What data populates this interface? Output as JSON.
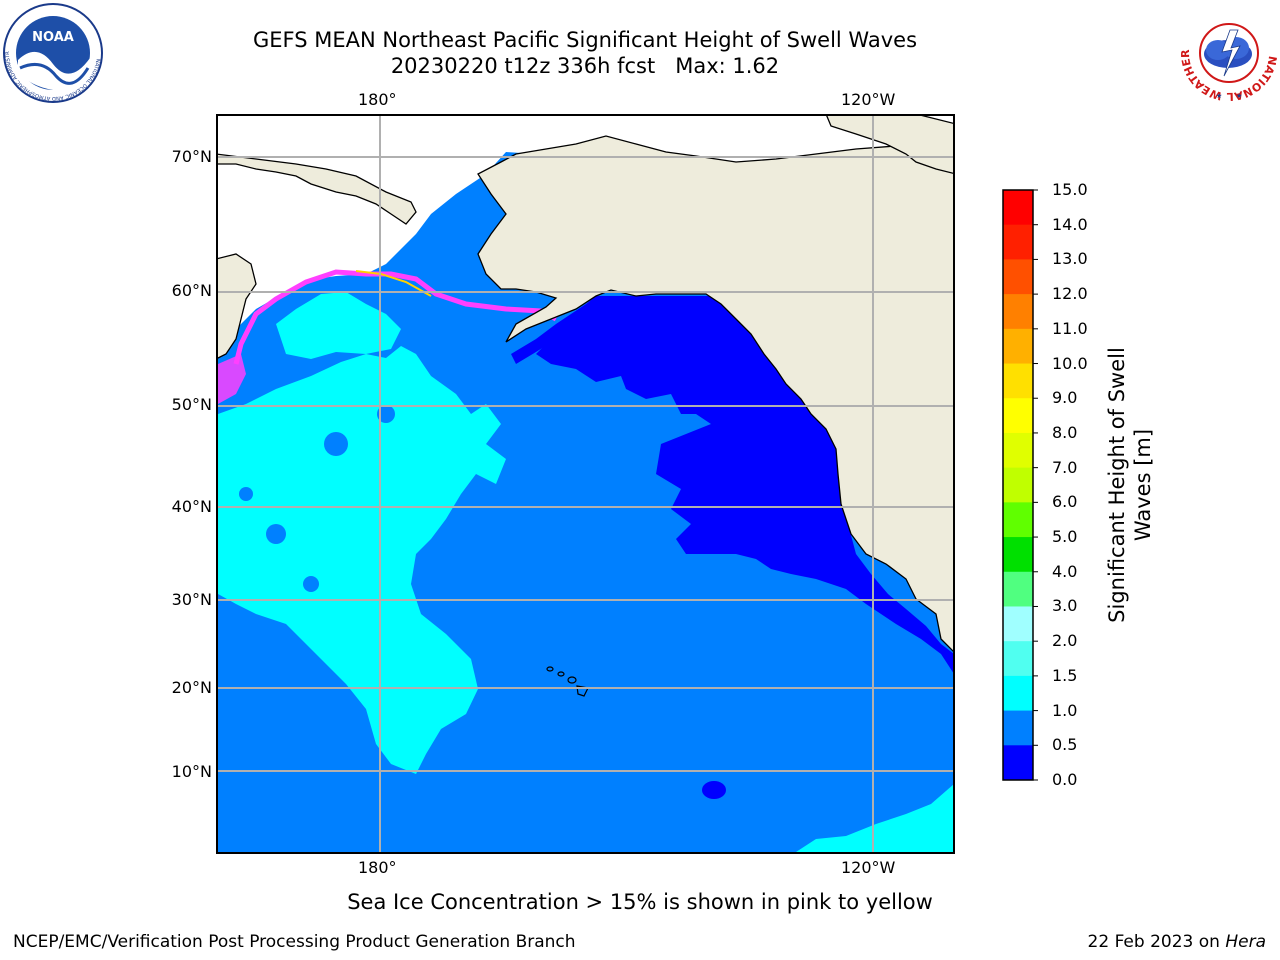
{
  "title": {
    "line1": "GEFS MEAN Northeast Pacific Significant Height of Swell Waves",
    "line2": "20230220 t12z 336h fcst   Max: 1.62"
  },
  "map": {
    "lon_labels_top": [
      "180°",
      "120°W"
    ],
    "lon_labels_bottom": [
      "180°",
      "120°W"
    ],
    "lat_labels": [
      "70°N",
      "60°N",
      "50°N",
      "40°N",
      "30°N",
      "20°N",
      "10°N"
    ],
    "colors": {
      "land": "#eeecdc",
      "ice_free_white": "#ffffff",
      "grid": "#b0b0b0",
      "coast": "#000000"
    },
    "fields": {
      "swell_0_0.5": "#0000ff",
      "swell_0.5_1.0": "#0080ff",
      "swell_1.0_1.5": "#00ffff",
      "swell_1.5_2.0": "#40ffe0",
      "sea_ice": "#ff40ff"
    }
  },
  "colorbar": {
    "label": "Significant Height of Swell Waves [m]",
    "label_line1": "Significant Height of Swell",
    "label_line2": "Waves [m]",
    "ticks": [
      "15.0",
      "14.0",
      "13.0",
      "12.0",
      "11.0",
      "10.0",
      "9.0",
      "8.0",
      "7.0",
      "6.0",
      "5.0",
      "4.0",
      "3.0",
      "2.0",
      "1.5",
      "1.0",
      "0.5",
      "0.0"
    ],
    "colors_top_to_bottom": [
      "#ff0000",
      "#ff2000",
      "#ff5000",
      "#ff8000",
      "#ffb000",
      "#ffe000",
      "#ffff00",
      "#e0ff00",
      "#c0ff00",
      "#60ff00",
      "#00e000",
      "#50ff80",
      "#a0ffff",
      "#50fff0",
      "#00ffff",
      "#0080ff",
      "#0000ff"
    ]
  },
  "caption": "Sea Ice Concentration > 15% is shown in pink to yellow",
  "footer": {
    "left": "NCEP/EMC/Verification Post Processing Product Generation Branch",
    "right_date": "22 Feb 2023 on ",
    "right_host": "Hera"
  },
  "logos": {
    "left": {
      "name": "noaa-logo",
      "text": "NOAA",
      "ring_text": "NATIONAL OCEANIC AND ATMOSPHERIC ADMINISTRATION · U.S. DEPARTMENT OF COMMERCE"
    },
    "right": {
      "name": "nws-logo",
      "ring_text": "NATIONAL WEATHER SERVICE"
    }
  }
}
